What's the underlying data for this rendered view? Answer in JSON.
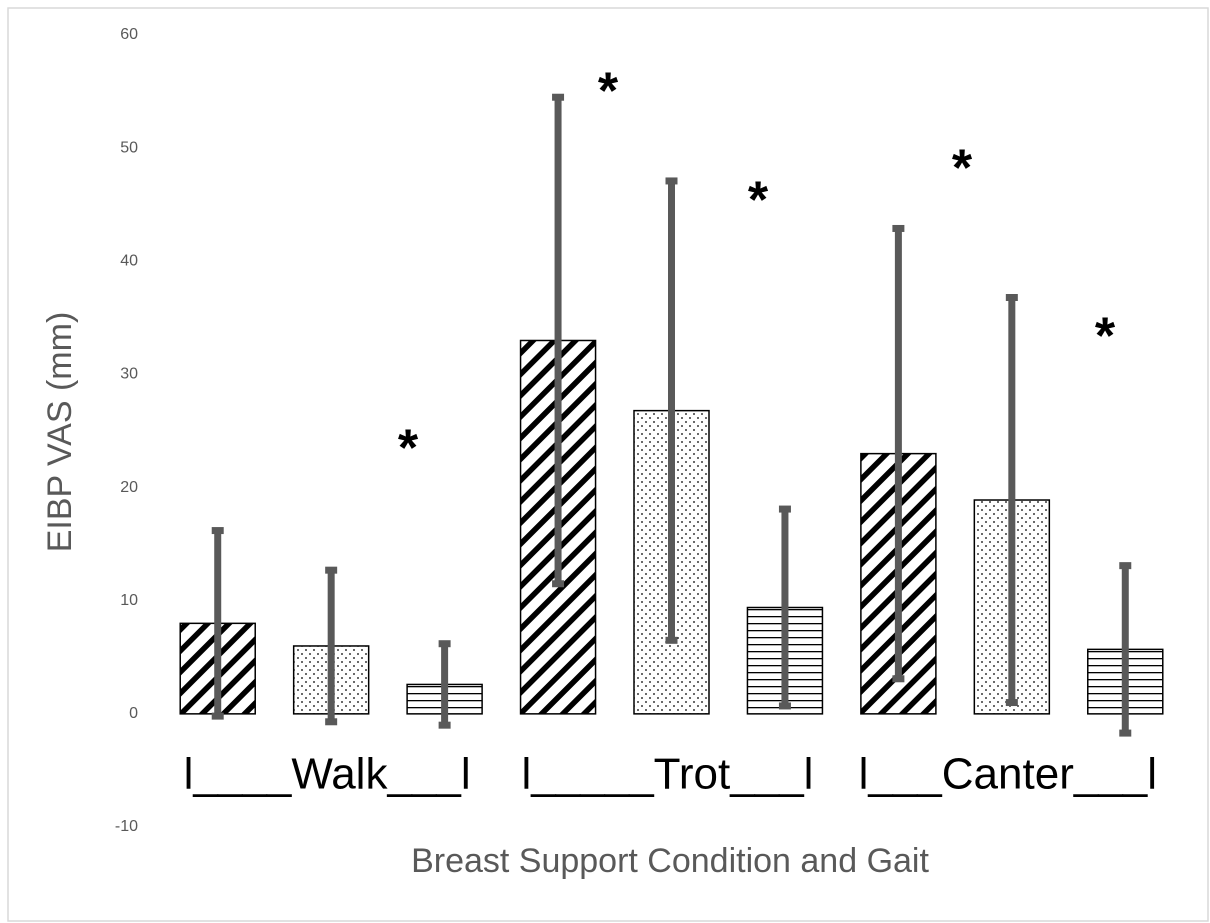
{
  "chart_data": {
    "type": "bar",
    "y_label": "EIBP VAS (mm)",
    "x_label": "Breast Support Condition and Gait",
    "categories": [
      null,
      null,
      null,
      null,
      null,
      null,
      null,
      null,
      null
    ],
    "values": [
      8,
      6,
      2.6,
      33,
      26.8,
      9.4,
      23,
      18.9,
      5.7
    ],
    "errors": [
      8.2,
      6.7,
      3.6,
      21.5,
      20.3,
      8.7,
      19.9,
      17.9,
      7.4
    ],
    "patterns": [
      "diagonal",
      "dots",
      "horizontal",
      "diagonal",
      "dots",
      "horizontal",
      "diagonal",
      "dots",
      "horizontal"
    ],
    "group_labels": [
      "l____Walk___l",
      "l_____Trot___l",
      "l___Canter___l"
    ],
    "annotations": [
      "*",
      "*",
      "*",
      "*",
      "*"
    ],
    "error_color": "#595959",
    "ylim": [
      -10,
      60
    ],
    "yticks": [
      -10,
      0,
      10,
      20,
      30,
      40,
      50,
      60
    ],
    "grid": false
  }
}
